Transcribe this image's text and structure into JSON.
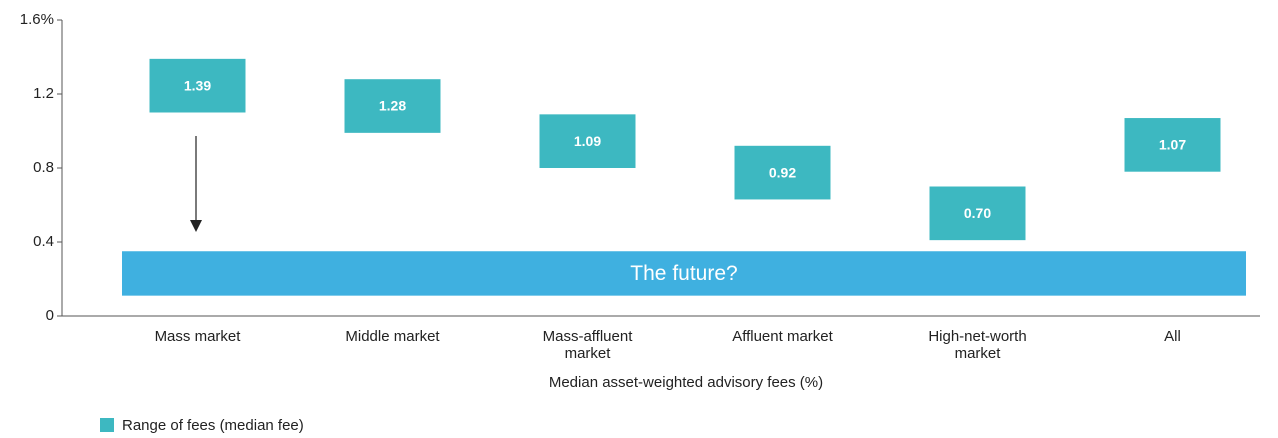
{
  "chart_data": {
    "type": "floating-bar",
    "x_label": "Median asset-weighted advisory fees (%)",
    "categories": [
      "Mass market",
      "Middle market",
      "Mass-affluent market",
      "Affluent market",
      "High-net-worth market",
      "All"
    ],
    "series": [
      {
        "name": "Range of fees (median fee)",
        "color": "#3db8c1",
        "low": [
          1.1,
          0.99,
          0.8,
          0.63,
          0.41,
          0.78
        ],
        "values": [
          1.39,
          1.28,
          1.09,
          0.92,
          0.7,
          1.07
        ],
        "value_labels": [
          "1.39",
          "1.28",
          "1.09",
          "0.92",
          "0.70",
          "1.07"
        ]
      }
    ],
    "annotation": {
      "label": "The future?",
      "low": 0.11,
      "high": 0.35,
      "color": "#3fb0e0"
    },
    "ylim": [
      0,
      1.6
    ],
    "yticks": [
      0,
      0.4,
      0.8,
      1.2,
      {
        "value": 1.6,
        "label": "1.6%"
      }
    ]
  }
}
